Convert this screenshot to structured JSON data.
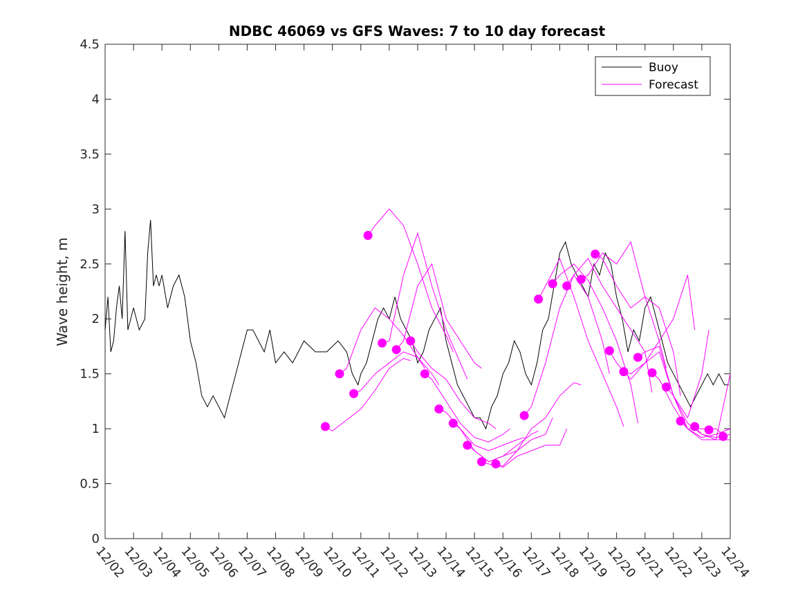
{
  "chart_data": {
    "type": "line",
    "title": "NDBC 46069 vs GFS Waves: 7 to 10 day forecast",
    "xlabel": "",
    "ylabel": "Wave height, m",
    "ylim": [
      0,
      4.5
    ],
    "yticks": [
      0,
      0.5,
      1,
      1.5,
      2,
      2.5,
      3,
      3.5,
      4,
      4.5
    ],
    "ytick_labels": [
      "0",
      "0.5",
      "1",
      "1.5",
      "2",
      "2.5",
      "3",
      "3.5",
      "4",
      "4.5"
    ],
    "xlim": [
      0,
      22
    ],
    "xtick_labels": [
      "12/02",
      "12/03",
      "12/04",
      "12/05",
      "12/06",
      "12/07",
      "12/08",
      "12/09",
      "12/10",
      "12/11",
      "12/12",
      "12/13",
      "12/14",
      "12/15",
      "12/16",
      "12/17",
      "12/18",
      "12/19",
      "12/20",
      "12/21",
      "12/22",
      "12/23",
      "12/24"
    ],
    "legend": {
      "position": "top-right",
      "entries": [
        "Buoy",
        "Forecast"
      ]
    },
    "colors": {
      "buoy": "#000000",
      "forecast": "#ff00ff",
      "axes": "#262626"
    },
    "buoy": {
      "name": "Buoy",
      "x": [
        0,
        0.1,
        0.2,
        0.3,
        0.4,
        0.5,
        0.6,
        0.7,
        0.8,
        0.9,
        1.0,
        1.2,
        1.4,
        1.5,
        1.6,
        1.7,
        1.8,
        1.9,
        2.0,
        2.2,
        2.4,
        2.6,
        2.8,
        3.0,
        3.2,
        3.4,
        3.6,
        3.8,
        4.0,
        4.2,
        4.4,
        4.6,
        4.8,
        5.0,
        5.2,
        5.4,
        5.6,
        5.8,
        6.0,
        6.3,
        6.6,
        7.0,
        7.4,
        7.8,
        8.2,
        8.5,
        8.7,
        8.9,
        9.0,
        9.2,
        9.4,
        9.6,
        9.8,
        10.0,
        10.2,
        10.4,
        10.6,
        10.8,
        11.0,
        11.2,
        11.4,
        11.6,
        11.8,
        12.0,
        12.2,
        12.4,
        12.6,
        12.8,
        13.0,
        13.2,
        13.4,
        13.6,
        13.8,
        14.0,
        14.2,
        14.4,
        14.6,
        14.8,
        15.0,
        15.2,
        15.4,
        15.6,
        15.8,
        16.0,
        16.2,
        16.4,
        16.6,
        16.8,
        17.0,
        17.2,
        17.4,
        17.6,
        17.8,
        18.0,
        18.2,
        18.4,
        18.6,
        18.8,
        19.0,
        19.2,
        19.4,
        19.6,
        19.8,
        20.0,
        20.2,
        20.4,
        20.6,
        20.8,
        21.0,
        21.2,
        21.4,
        21.6,
        21.8,
        21.95
      ],
      "values": [
        1.9,
        2.2,
        1.7,
        1.8,
        2.1,
        2.3,
        2.0,
        2.8,
        1.9,
        2.0,
        2.1,
        1.9,
        2.0,
        2.6,
        2.9,
        2.3,
        2.4,
        2.3,
        2.4,
        2.1,
        2.3,
        2.4,
        2.2,
        1.8,
        1.6,
        1.3,
        1.2,
        1.3,
        1.2,
        1.1,
        1.3,
        1.5,
        1.7,
        1.9,
        1.9,
        1.8,
        1.7,
        1.9,
        1.6,
        1.7,
        1.6,
        1.8,
        1.7,
        1.7,
        1.8,
        1.7,
        1.5,
        1.4,
        1.5,
        1.6,
        1.8,
        2.0,
        2.1,
        2.0,
        2.2,
        2.0,
        1.9,
        1.8,
        1.6,
        1.7,
        1.9,
        2.0,
        2.1,
        1.8,
        1.6,
        1.4,
        1.3,
        1.2,
        1.1,
        1.1,
        1.0,
        1.2,
        1.3,
        1.5,
        1.6,
        1.8,
        1.7,
        1.5,
        1.4,
        1.6,
        1.9,
        2.0,
        2.3,
        2.6,
        2.7,
        2.5,
        2.4,
        2.3,
        2.2,
        2.5,
        2.4,
        2.6,
        2.5,
        2.2,
        2.0,
        1.7,
        1.9,
        1.8,
        2.1,
        2.2,
        2.0,
        1.8,
        1.6,
        1.5,
        1.4,
        1.3,
        1.2,
        1.3,
        1.4,
        1.5,
        1.4,
        1.5,
        1.4,
        1.4
      ]
    },
    "forecasts": [
      {
        "x": [
          7.75,
          8.0,
          8.5,
          9.0,
          9.5,
          10.0,
          10.5,
          10.75
        ],
        "values": [
          1.02,
          0.98,
          1.08,
          1.18,
          1.35,
          1.55,
          1.64,
          1.62
        ]
      },
      {
        "x": [
          8.25,
          8.5,
          9.0,
          9.5,
          10.0,
          10.5,
          11.0,
          11.25
        ],
        "values": [
          1.5,
          1.55,
          1.9,
          2.1,
          2.0,
          1.85,
          1.65,
          1.55
        ]
      },
      {
        "x": [
          8.75,
          9.0,
          9.5,
          10.0,
          10.5,
          11.0,
          11.5,
          11.75
        ],
        "values": [
          1.32,
          1.35,
          1.5,
          1.6,
          1.7,
          1.65,
          1.5,
          1.4
        ]
      },
      {
        "x": [
          9.25,
          9.5,
          10.0,
          10.5,
          11.0,
          11.5,
          12.0,
          12.25
        ],
        "values": [
          2.76,
          2.85,
          3.0,
          2.85,
          2.5,
          2.1,
          1.85,
          1.7
        ]
      },
      {
        "x": [
          9.75,
          10.0,
          10.5,
          11.0,
          11.5,
          12.0,
          12.5,
          12.75
        ],
        "values": [
          1.78,
          1.8,
          2.4,
          2.78,
          2.3,
          1.9,
          1.6,
          1.45
        ]
      },
      {
        "x": [
          10.25,
          10.5,
          11.0,
          11.5,
          12.0,
          12.5,
          13.0,
          13.25
        ],
        "values": [
          1.72,
          1.8,
          2.3,
          2.5,
          2.0,
          1.8,
          1.6,
          1.55
        ]
      },
      {
        "x": [
          10.75,
          11.0,
          11.5,
          12.0,
          12.5,
          13.0,
          13.5,
          13.75
        ],
        "values": [
          1.8,
          1.7,
          1.55,
          1.45,
          1.25,
          1.1,
          1.05,
          1.0
        ]
      },
      {
        "x": [
          11.25,
          11.5,
          12.0,
          12.5,
          13.0,
          13.5,
          14.0,
          14.25
        ],
        "values": [
          1.5,
          1.45,
          1.25,
          1.05,
          0.92,
          0.88,
          0.95,
          1.0
        ]
      },
      {
        "x": [
          11.75,
          12.0,
          12.5,
          13.0,
          13.5,
          14.0,
          14.5,
          14.75
        ],
        "values": [
          1.18,
          1.15,
          1.0,
          0.85,
          0.8,
          0.85,
          0.9,
          0.92
        ]
      },
      {
        "x": [
          12.25,
          12.5,
          13.0,
          13.5,
          14.0,
          14.5,
          15.0,
          15.25
        ],
        "values": [
          1.05,
          1.0,
          0.8,
          0.7,
          0.75,
          0.85,
          0.95,
          0.98
        ]
      },
      {
        "x": [
          12.75,
          13.0,
          13.5,
          14.0,
          14.5,
          15.0,
          15.5,
          15.75
        ],
        "values": [
          0.85,
          0.8,
          0.7,
          0.75,
          0.8,
          0.9,
          0.95,
          1.1
        ]
      },
      {
        "x": [
          13.25,
          13.5,
          14.0,
          14.5,
          15.0,
          15.5,
          16.0,
          16.25
        ],
        "values": [
          0.7,
          0.68,
          0.65,
          0.75,
          0.8,
          0.85,
          0.85,
          1.0
        ]
      },
      {
        "x": [
          13.75,
          14.0,
          14.5,
          15.0,
          15.5,
          16.0,
          16.5,
          16.75
        ],
        "values": [
          0.68,
          0.66,
          0.8,
          1.0,
          1.1,
          1.3,
          1.42,
          1.4
        ]
      },
      {
        "x": [
          14.75,
          15.0,
          15.5,
          16.0,
          16.5,
          17.0,
          17.5,
          17.75
        ],
        "values": [
          1.12,
          1.2,
          1.6,
          2.1,
          2.4,
          2.2,
          1.8,
          1.5
        ]
      },
      {
        "x": [
          15.25,
          15.5,
          16.0,
          16.5,
          17.0,
          17.5,
          18.0,
          18.25
        ],
        "values": [
          2.18,
          2.3,
          2.55,
          2.2,
          1.8,
          1.5,
          1.2,
          1.02
        ]
      },
      {
        "x": [
          15.75,
          16.0,
          16.5,
          17.0,
          17.5,
          18.0,
          18.5,
          18.75
        ],
        "values": [
          2.32,
          2.4,
          2.5,
          2.35,
          2.1,
          1.8,
          1.4,
          1.05
        ]
      },
      {
        "x": [
          16.25,
          16.5,
          17.0,
          17.5,
          18.0,
          18.5,
          19.0,
          19.25
        ],
        "values": [
          2.3,
          2.4,
          2.55,
          2.3,
          2.1,
          1.9,
          1.7,
          1.33
        ]
      },
      {
        "x": [
          16.75,
          17.0,
          17.5,
          18.0,
          18.5,
          19.0,
          19.5,
          19.75
        ],
        "values": [
          2.36,
          2.4,
          2.6,
          2.5,
          2.7,
          2.2,
          1.8,
          1.55
        ]
      },
      {
        "x": [
          17.25,
          17.5,
          18.0,
          18.5,
          19.0,
          19.5,
          20.0,
          20.25
        ],
        "values": [
          2.59,
          2.55,
          2.3,
          2.1,
          2.2,
          2.1,
          1.7,
          1.3
        ]
      },
      {
        "x": [
          17.75,
          18.0,
          18.5,
          19.0,
          19.5,
          20.0,
          20.5,
          20.75
        ],
        "values": [
          1.71,
          1.6,
          1.45,
          1.6,
          1.8,
          2.0,
          2.4,
          1.9
        ]
      },
      {
        "x": [
          18.25,
          18.5,
          19.0,
          19.5,
          20.0,
          20.5,
          21.0,
          21.25
        ],
        "values": [
          1.52,
          1.5,
          1.6,
          1.7,
          1.3,
          1.1,
          1.5,
          1.9
        ]
      },
      {
        "x": [
          18.75,
          19.0,
          19.5,
          20.0,
          20.5,
          21.0,
          21.5,
          21.75
        ],
        "values": [
          1.65,
          1.7,
          1.75,
          1.3,
          1.0,
          1.0,
          1.0,
          0.95
        ]
      },
      {
        "x": [
          19.25,
          19.5,
          20.0,
          20.5,
          21.0,
          21.5,
          22.0
        ],
        "values": [
          1.51,
          1.45,
          1.2,
          1.0,
          0.92,
          0.95,
          1.0
        ]
      },
      {
        "x": [
          19.75,
          20.0,
          20.5,
          21.0,
          21.5,
          22.0
        ],
        "values": [
          1.38,
          1.3,
          1.05,
          0.95,
          0.92,
          0.95
        ]
      },
      {
        "x": [
          20.25,
          20.5,
          21.0,
          21.5,
          22.0
        ],
        "values": [
          1.07,
          1.0,
          0.9,
          0.9,
          0.9
        ]
      },
      {
        "x": [
          20.75,
          21.0,
          21.5,
          22.0
        ],
        "values": [
          1.02,
          0.95,
          0.9,
          1.5
        ]
      }
    ],
    "forecast_markers": {
      "x": [
        7.75,
        8.25,
        8.75,
        9.25,
        9.75,
        10.25,
        10.75,
        11.25,
        11.75,
        12.25,
        12.75,
        13.25,
        13.75,
        14.75,
        15.25,
        15.75,
        16.25,
        16.75,
        17.25,
        17.75,
        18.25,
        18.75,
        19.25,
        19.75,
        20.25,
        20.75,
        21.25,
        21.75
      ],
      "values": [
        1.02,
        1.5,
        1.32,
        2.76,
        1.78,
        1.72,
        1.8,
        1.5,
        1.18,
        1.05,
        0.85,
        0.7,
        0.68,
        1.12,
        2.18,
        2.32,
        2.3,
        2.36,
        2.59,
        1.71,
        1.52,
        1.65,
        1.51,
        1.38,
        1.07,
        1.02,
        0.99,
        0.93
      ]
    }
  }
}
